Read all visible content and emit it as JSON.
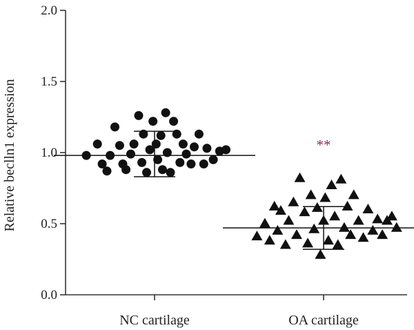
{
  "chart_data": {
    "type": "scatter",
    "title": "",
    "xlabel": "",
    "ylabel": "Relative beclln1 expression",
    "ylim": [
      0,
      2.0
    ],
    "yticks": [
      0.0,
      0.5,
      1.0,
      1.5,
      2.0
    ],
    "ytick_labels": [
      "0.0",
      "0.5",
      "1.0",
      "1.5",
      "2.0"
    ],
    "categories": [
      "NC cartilage",
      "OA cartilage"
    ],
    "grid": false,
    "legend": "none",
    "series": [
      {
        "category": "NC cartilage",
        "marker": "circle",
        "color": "#111111",
        "mean": 0.98,
        "sd_upper": 1.15,
        "sd_lower": 0.83,
        "points": [
          {
            "offset": -0.43,
            "value": 0.98
          },
          {
            "offset": -0.36,
            "value": 1.06
          },
          {
            "offset": -0.33,
            "value": 0.92
          },
          {
            "offset": -0.3,
            "value": 0.87
          },
          {
            "offset": -0.28,
            "value": 0.98
          },
          {
            "offset": -0.25,
            "value": 1.18
          },
          {
            "offset": -0.22,
            "value": 1.05
          },
          {
            "offset": -0.2,
            "value": 0.92
          },
          {
            "offset": -0.18,
            "value": 0.88
          },
          {
            "offset": -0.15,
            "value": 0.99
          },
          {
            "offset": -0.13,
            "value": 1.06
          },
          {
            "offset": -0.1,
            "value": 1.26
          },
          {
            "offset": -0.08,
            "value": 0.93
          },
          {
            "offset": -0.07,
            "value": 1.13
          },
          {
            "offset": -0.05,
            "value": 0.86
          },
          {
            "offset": -0.03,
            "value": 1.02
          },
          {
            "offset": -0.01,
            "value": 1.22
          },
          {
            "offset": 0.01,
            "value": 1.06
          },
          {
            "offset": 0.02,
            "value": 0.95
          },
          {
            "offset": 0.04,
            "value": 1.12
          },
          {
            "offset": 0.05,
            "value": 0.88
          },
          {
            "offset": 0.07,
            "value": 1.28
          },
          {
            "offset": 0.08,
            "value": 1.0
          },
          {
            "offset": 0.1,
            "value": 0.86
          },
          {
            "offset": 0.12,
            "value": 1.22
          },
          {
            "offset": 0.14,
            "value": 1.13
          },
          {
            "offset": 0.16,
            "value": 0.93
          },
          {
            "offset": 0.18,
            "value": 1.06
          },
          {
            "offset": 0.2,
            "value": 0.99
          },
          {
            "offset": 0.23,
            "value": 0.92
          },
          {
            "offset": 0.25,
            "value": 1.04
          },
          {
            "offset": 0.28,
            "value": 1.13
          },
          {
            "offset": 0.31,
            "value": 0.92
          },
          {
            "offset": 0.33,
            "value": 1.03
          },
          {
            "offset": 0.37,
            "value": 0.95
          },
          {
            "offset": 0.41,
            "value": 1.01
          },
          {
            "offset": 0.45,
            "value": 1.02
          }
        ]
      },
      {
        "category": "OA cartilage",
        "marker": "triangle",
        "color": "#111111",
        "mean": 0.47,
        "sd_upper": 0.62,
        "sd_lower": 0.32,
        "points": [
          {
            "offset": -0.42,
            "value": 0.41
          },
          {
            "offset": -0.37,
            "value": 0.5
          },
          {
            "offset": -0.34,
            "value": 0.38
          },
          {
            "offset": -0.31,
            "value": 0.62
          },
          {
            "offset": -0.29,
            "value": 0.45
          },
          {
            "offset": -0.27,
            "value": 0.59
          },
          {
            "offset": -0.24,
            "value": 0.35
          },
          {
            "offset": -0.22,
            "value": 0.52
          },
          {
            "offset": -0.19,
            "value": 0.65
          },
          {
            "offset": -0.17,
            "value": 0.42
          },
          {
            "offset": -0.15,
            "value": 0.82
          },
          {
            "offset": -0.12,
            "value": 0.58
          },
          {
            "offset": -0.1,
            "value": 0.36
          },
          {
            "offset": -0.08,
            "value": 0.7
          },
          {
            "offset": -0.06,
            "value": 0.46
          },
          {
            "offset": -0.04,
            "value": 0.61
          },
          {
            "offset": -0.02,
            "value": 0.28
          },
          {
            "offset": 0.0,
            "value": 0.52
          },
          {
            "offset": 0.01,
            "value": 0.68
          },
          {
            "offset": 0.03,
            "value": 0.38
          },
          {
            "offset": 0.05,
            "value": 0.77
          },
          {
            "offset": 0.07,
            "value": 0.55
          },
          {
            "offset": 0.09,
            "value": 0.35
          },
          {
            "offset": 0.11,
            "value": 0.81
          },
          {
            "offset": 0.13,
            "value": 0.47
          },
          {
            "offset": 0.15,
            "value": 0.62
          },
          {
            "offset": 0.17,
            "value": 0.42
          },
          {
            "offset": 0.19,
            "value": 0.7
          },
          {
            "offset": 0.22,
            "value": 0.52
          },
          {
            "offset": 0.25,
            "value": 0.4
          },
          {
            "offset": 0.28,
            "value": 0.6
          },
          {
            "offset": 0.31,
            "value": 0.45
          },
          {
            "offset": 0.34,
            "value": 0.53
          },
          {
            "offset": 0.37,
            "value": 0.42
          },
          {
            "offset": 0.4,
            "value": 0.52
          },
          {
            "offset": 0.43,
            "value": 0.55
          },
          {
            "offset": 0.46,
            "value": 0.47
          }
        ]
      }
    ],
    "annotations": [
      {
        "text": "**",
        "category": "OA cartilage",
        "value": 1.02,
        "color": "#8e2a63"
      }
    ]
  }
}
